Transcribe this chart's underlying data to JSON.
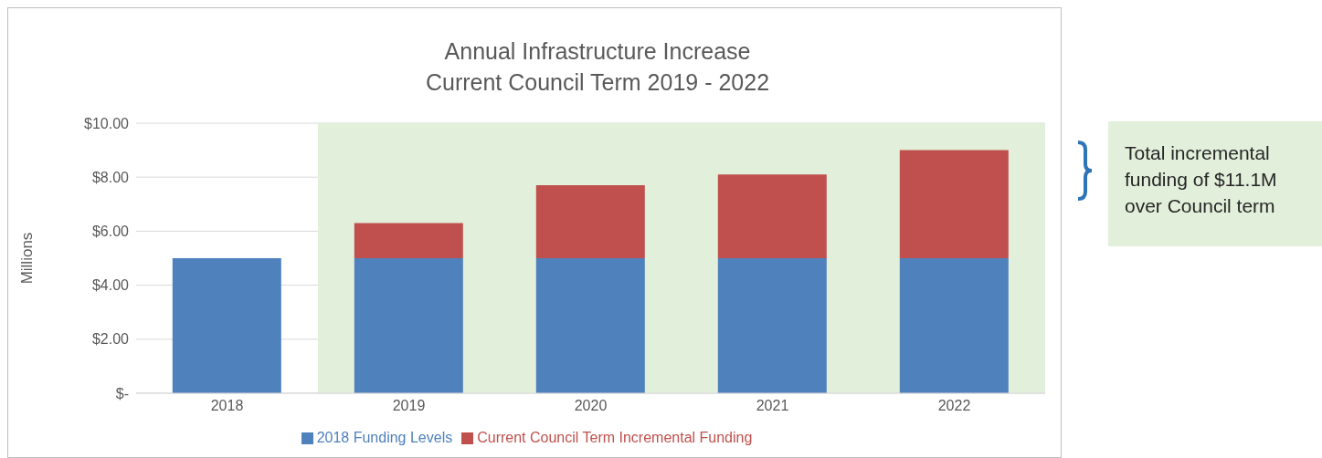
{
  "chart_data": {
    "type": "bar",
    "title": "Annual Infrastructure Increase",
    "subtitle": "Current Council Term 2019 - 2022",
    "ylabel": "Millions",
    "categories": [
      "2018",
      "2019",
      "2020",
      "2021",
      "2022"
    ],
    "stacked": true,
    "series": [
      {
        "name": "2018 Funding Levels",
        "color": "#4f81bd",
        "values": [
          5.0,
          5.0,
          5.0,
          5.0,
          5.0
        ]
      },
      {
        "name": "Current Council Term Incremental Funding",
        "color": "#c0504d",
        "values": [
          null,
          1.3,
          2.7,
          3.1,
          4.0
        ]
      }
    ],
    "ylim": [
      0,
      10
    ],
    "yticks": [
      {
        "value": 0,
        "label": "$-"
      },
      {
        "value": 2,
        "label": "$2.00"
      },
      {
        "value": 4,
        "label": "$4.00"
      },
      {
        "value": 6,
        "label": "$6.00"
      },
      {
        "value": 8,
        "label": "$8.00"
      },
      {
        "value": 10,
        "label": "$10.00"
      }
    ],
    "grid": "y",
    "legend": "bottom",
    "bands": [
      {
        "axis": "x",
        "from": "2019",
        "to": "2022",
        "color": "#e2efda"
      }
    ],
    "annotations": [
      "Total incremental funding of $11.1M over Council term"
    ]
  }
}
